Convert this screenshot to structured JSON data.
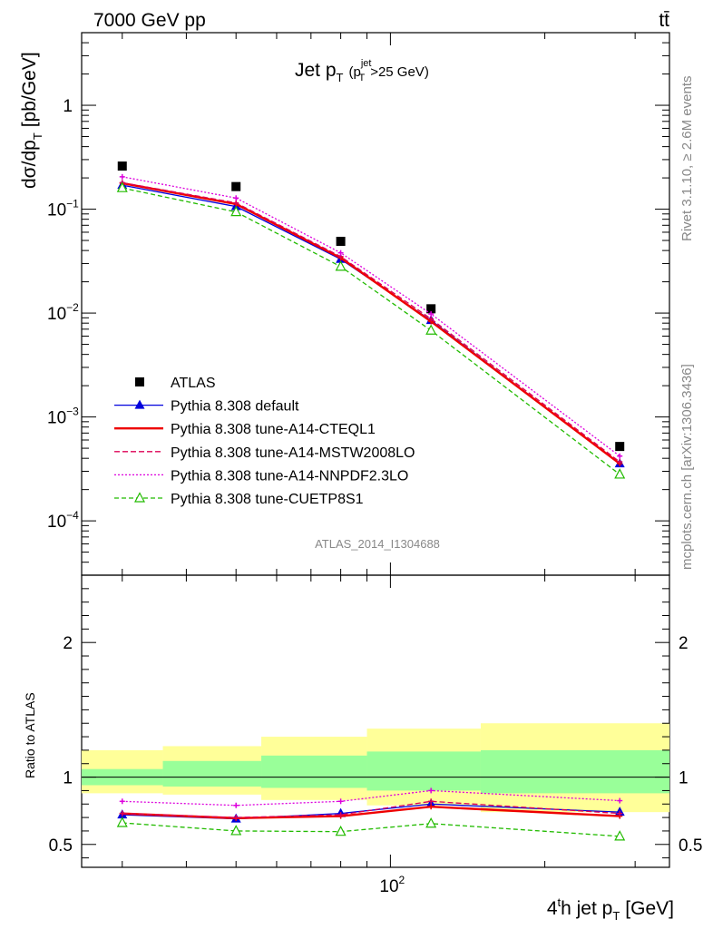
{
  "header": {
    "energy": "7000 GeV pp",
    "process": "tt̄",
    "analysis": "ATLAS_2014_I1304688",
    "rivet": "Rivet 3.1.10, ≥ 2.6M events",
    "mcplots": "mcplots.cern.ch [arXiv:1306.3436]"
  },
  "chart_data": [
    {
      "type": "line",
      "title_main": "Jet p",
      "title_main_sub": "T",
      "title_cut_open": "(p",
      "title_cut_sup": "jet",
      "title_cut_sub": "T",
      "title_cut_rest": ">25 GeV)",
      "ylabel_main": "dσ/dp",
      "ylabel_sub": "T",
      "ylabel_unit": "[pb/GeV]",
      "yscale": "log",
      "xscale": "log",
      "xlim": [
        25,
        350
      ],
      "ylim": [
        3e-05,
        5
      ],
      "y_ticks": [
        {
          "v": 1,
          "base": "1",
          "exp": ""
        },
        {
          "v": 0.1,
          "base": "10",
          "exp": "−1"
        },
        {
          "v": 0.01,
          "base": "10",
          "exp": "−2"
        },
        {
          "v": 0.001,
          "base": "10",
          "exp": "−3"
        },
        {
          "v": 0.0001,
          "base": "10",
          "exp": "−4"
        }
      ],
      "x": [
        30,
        50,
        80,
        120,
        280
      ],
      "series": [
        {
          "name": "ATLAS",
          "color": "#000000",
          "style": "data",
          "values": [
            0.26,
            0.165,
            0.049,
            0.011,
            0.00052
          ]
        },
        {
          "name": "Pythia 8.308 default",
          "color": "#0000dd",
          "style": "solid-tri",
          "values": [
            0.17,
            0.106,
            0.033,
            0.0085,
            0.000355
          ]
        },
        {
          "name": "Pythia 8.308 tune-A14-CTEQL1",
          "color": "#ee0000",
          "style": "solid-thick",
          "values": [
            0.178,
            0.112,
            0.034,
            0.0083,
            0.000355
          ]
        },
        {
          "name": "Pythia 8.308 tune-A14-MSTW2008LO",
          "color": "#dd0055",
          "style": "dashed",
          "values": [
            0.18,
            0.115,
            0.035,
            0.0088,
            0.00037
          ]
        },
        {
          "name": "Pythia 8.308 tune-A14-NNPDF2.3LO",
          "color": "#dd00dd",
          "style": "dotted",
          "values": [
            0.205,
            0.128,
            0.038,
            0.0098,
            0.00042
          ]
        },
        {
          "name": "Pythia 8.308 tune-CUETP8S1",
          "color": "#22bb00",
          "style": "dashed-opentri",
          "values": [
            0.16,
            0.094,
            0.028,
            0.0068,
            0.00028
          ]
        }
      ]
    },
    {
      "type": "line",
      "ylabel": "Ratio to ATLAS",
      "xlabel_main": "4",
      "xlabel_sup": "t",
      "xlabel_rest": "h jet p",
      "xlabel_sub": "T",
      "xlabel_unit": "[GeV]",
      "xscale": "log",
      "xlim": [
        25,
        350
      ],
      "ylim": [
        0.33,
        2.5
      ],
      "y_ticks": [
        {
          "v": 0.5,
          "label": "0.5"
        },
        {
          "v": 1,
          "label": "1"
        },
        {
          "v": 2,
          "label": "2"
        }
      ],
      "x_ticks": [
        {
          "v": 100,
          "base": "10",
          "exp": "2"
        }
      ],
      "bins": [
        {
          "lo": 25,
          "hi": 36,
          "green_lo": 0.94,
          "green_hi": 1.06,
          "yellow_lo": 0.88,
          "yellow_hi": 1.2
        },
        {
          "lo": 36,
          "hi": 56,
          "green_lo": 0.93,
          "green_hi": 1.12,
          "yellow_lo": 0.87,
          "yellow_hi": 1.23
        },
        {
          "lo": 56,
          "hi": 90,
          "green_lo": 0.92,
          "green_hi": 1.16,
          "yellow_lo": 0.83,
          "yellow_hi": 1.3
        },
        {
          "lo": 90,
          "hi": 150,
          "green_lo": 0.9,
          "green_hi": 1.19,
          "yellow_lo": 0.79,
          "yellow_hi": 1.36
        },
        {
          "lo": 150,
          "hi": 350,
          "green_lo": 0.88,
          "green_hi": 1.2,
          "yellow_lo": 0.74,
          "yellow_hi": 1.4
        }
      ],
      "x": [
        30,
        50,
        80,
        120,
        280
      ],
      "series": [
        {
          "color": "#0000dd",
          "style": "solid-tri",
          "values": [
            0.72,
            0.69,
            0.73,
            0.8,
            0.74
          ]
        },
        {
          "color": "#ee0000",
          "style": "solid-thick",
          "values": [
            0.73,
            0.695,
            0.71,
            0.78,
            0.71
          ]
        },
        {
          "color": "#dd0055",
          "style": "dashed",
          "values": [
            0.73,
            0.7,
            0.72,
            0.82,
            0.73
          ]
        },
        {
          "color": "#dd00dd",
          "style": "dotted",
          "values": [
            0.82,
            0.79,
            0.82,
            0.9,
            0.825
          ]
        },
        {
          "color": "#22bb00",
          "style": "dashed-opentri",
          "values": [
            0.66,
            0.6,
            0.595,
            0.655,
            0.56
          ]
        }
      ]
    }
  ]
}
